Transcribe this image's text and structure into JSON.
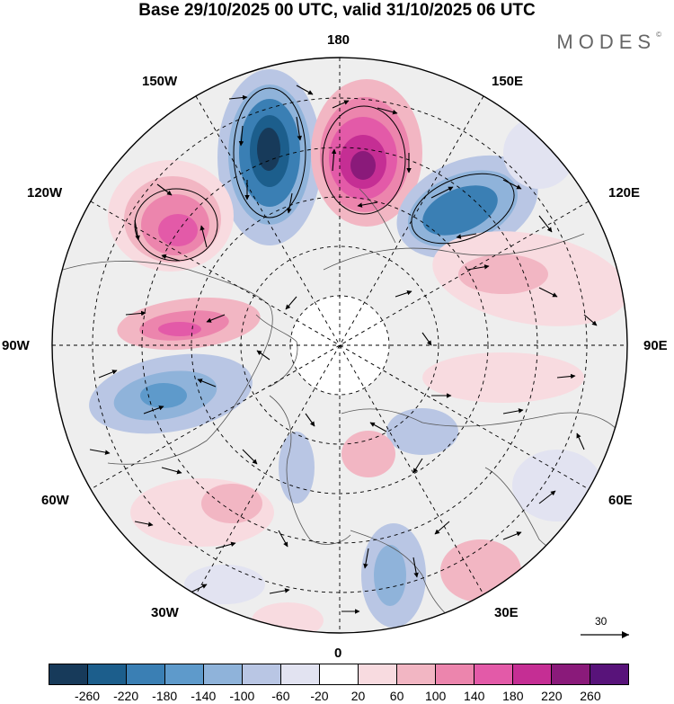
{
  "title": "Base 29/10/2025 00 UTC, valid 31/10/2025 06 UTC",
  "brand": "MODES",
  "brand_mark": "©",
  "longitude_labels": {
    "lon_180": "180",
    "lon_150e": "150E",
    "lon_120e": "120E",
    "lon_90e": "90E",
    "lon_60e": "60E",
    "lon_30e": "30E",
    "lon_0": "0",
    "lon_30w": "30W",
    "lon_60w": "60W",
    "lon_90w": "90W",
    "lon_120w": "120W",
    "lon_150w": "150W"
  },
  "vector_reference": "30",
  "colorbar": {
    "ticks": [
      "-260",
      "-220",
      "-180",
      "-140",
      "-100",
      "-60",
      "-20",
      "20",
      "60",
      "100",
      "140",
      "180",
      "220",
      "260"
    ],
    "colors": [
      "#173a5a",
      "#1c5e8c",
      "#3a7fb4",
      "#5e9acb",
      "#8fb3da",
      "#b9c6e4",
      "#e2e3f1",
      "#ffffff",
      "#f8dbe0",
      "#f2b6c3",
      "#ec85ad",
      "#e35aa8",
      "#c52e94",
      "#8a1a7a",
      "#58137a"
    ]
  },
  "anomaly_centers": [
    {
      "lon": "170W",
      "sign": "negative",
      "value": -260
    },
    {
      "lon": "165E",
      "sign": "positive",
      "value": 260
    },
    {
      "lon": "140W",
      "sign": "positive",
      "value": 180
    },
    {
      "lon": "140E",
      "sign": "negative",
      "value": -180
    },
    {
      "lon": "110W",
      "sign": "positive",
      "value": 180
    },
    {
      "lon": "70W",
      "sign": "negative",
      "value": -140
    },
    {
      "lon": "110E",
      "sign": "positive",
      "value": 100
    },
    {
      "lon": "45W",
      "sign": "positive",
      "value": 100
    },
    {
      "lon": "20E",
      "sign": "negative",
      "value": -100
    },
    {
      "lon": "30E",
      "sign": "positive",
      "value": 60
    }
  ]
}
